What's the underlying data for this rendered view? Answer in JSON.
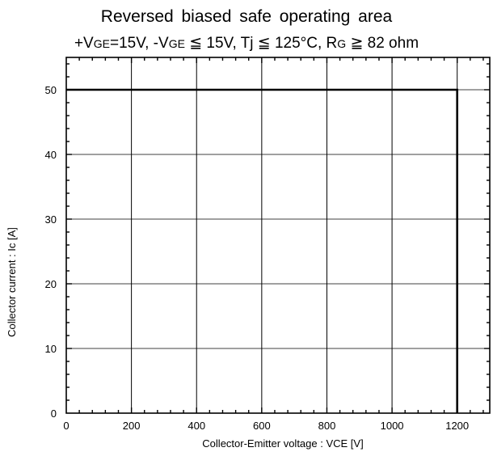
{
  "chart_data": {
    "type": "line",
    "title": "Reversed  biased  safe  operating  area",
    "subtitle": {
      "p1": "+V",
      "p1s": "GE",
      "p2": "=15V,  -V",
      "p2s": "GE",
      "p3": " ≦ 15V,  Tj ≦ 125°C,  R",
      "p3s": "G",
      "p4": " ≧ 82 ohm"
    },
    "xlabel": "Collector-Emitter voltage  :  VCE [V]",
    "ylabel": "Collector  current  :  Ic [A]",
    "xlim": [
      0,
      1300
    ],
    "ylim": [
      0,
      55
    ],
    "x_ticks": [
      0,
      200,
      400,
      600,
      800,
      1000,
      1200
    ],
    "y_ticks": [
      0,
      10,
      20,
      30,
      40,
      50
    ],
    "grid": true,
    "series": [
      {
        "x": [
          0,
          1200,
          1200
        ],
        "y": [
          50,
          50,
          0
        ]
      }
    ]
  }
}
